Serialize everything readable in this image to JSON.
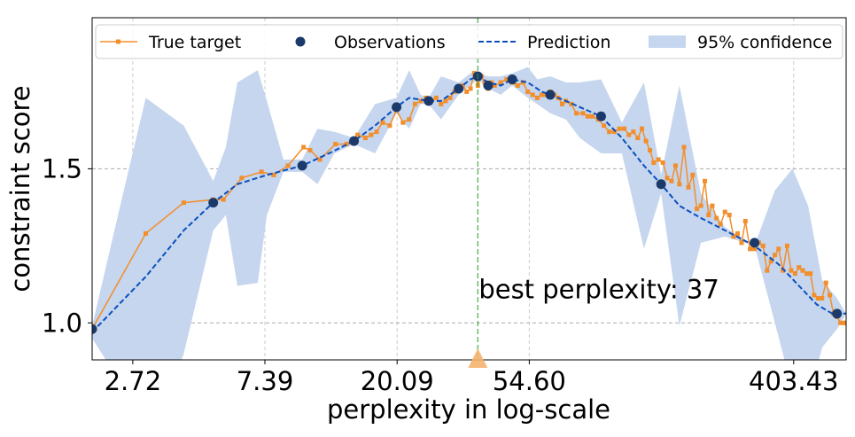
{
  "chart_data": {
    "type": "line",
    "xscale": "log",
    "xlabel": "perplexity in log-scale",
    "ylabel": "constraint score",
    "xlim": [
      2.0,
      600.0
    ],
    "ylim": [
      0.88,
      1.99
    ],
    "xticks": [
      2.72,
      7.39,
      20.09,
      54.6,
      403.43
    ],
    "xtick_labels": [
      "2.72",
      "7.39",
      "20.09",
      "54.60",
      "403.43"
    ],
    "yticks": [
      1.0,
      1.5
    ],
    "ytick_labels": [
      "1.0",
      "1.5"
    ],
    "grid": true,
    "legend_position": "top",
    "annotation": {
      "text": "best perplexity: 37",
      "x": 37.0
    },
    "colors": {
      "true_target": "#f28e2b",
      "observations": "#1b3a6b",
      "prediction": "#0b4fbf",
      "confidence": "#c5d6ee",
      "best_line": "#2ca02c",
      "best_marker": "#f5b26e"
    },
    "series": [
      {
        "name": "True target",
        "style": "line-marker",
        "x": [
          2.0,
          3.0,
          4.0,
          5.0,
          5.4,
          6.2,
          7.2,
          7.9,
          8.8,
          9.9,
          10.4,
          11.2,
          12.6,
          13.7,
          14.9,
          15.8,
          16.5,
          17.2,
          18.0,
          19.0,
          20.0,
          21.0,
          22.0,
          23.0,
          24.0,
          25.0,
          26.0,
          27.0,
          28.0,
          29.0,
          30.0,
          31.0,
          32.0,
          33.0,
          34.0,
          35.0,
          36.0,
          37.0,
          38.0,
          39.0,
          40.0,
          41.0,
          42.0,
          44.0,
          46.0,
          48.0,
          50.0,
          52.0,
          54.0,
          56.0,
          58.0,
          60.0,
          62.0,
          64.0,
          66.0,
          68.0,
          70.0,
          72.0,
          75.0,
          78.0,
          82.0,
          85.0,
          88.0,
          92.0,
          96.0,
          100.0,
          104.0,
          108.0,
          112.0,
          116.0,
          120.0,
          124.0,
          128.0,
          132.0,
          136.0,
          140.0,
          145.0,
          150.0,
          155.0,
          160.0,
          165.0,
          170.0,
          176.0,
          182.0,
          188.0,
          194.0,
          200.0,
          206.0,
          212.0,
          218.0,
          225.0,
          232.0,
          240.0,
          248.0,
          256.0,
          264.0,
          272.0,
          280.0,
          290.0,
          300.0,
          310.0,
          320.0,
          330.0,
          340.0,
          350.0,
          360.0,
          372.0,
          384.0,
          396.0,
          408.0,
          420.0,
          432.0,
          445.0,
          458.0,
          471.0,
          485.0,
          500.0,
          515.0,
          530.0,
          545.0,
          560.0,
          575.0,
          590.0,
          600.0
        ],
        "y": [
          0.98,
          1.29,
          1.39,
          1.4,
          1.4,
          1.47,
          1.49,
          1.48,
          1.51,
          1.57,
          1.56,
          1.53,
          1.58,
          1.58,
          1.61,
          1.6,
          1.61,
          1.62,
          1.65,
          1.64,
          1.69,
          1.65,
          1.66,
          1.71,
          1.72,
          1.73,
          1.72,
          1.73,
          1.71,
          1.72,
          1.73,
          1.75,
          1.76,
          1.77,
          1.75,
          1.76,
          1.81,
          1.77,
          1.8,
          1.78,
          1.76,
          1.78,
          1.77,
          1.78,
          1.79,
          1.78,
          1.77,
          1.78,
          1.75,
          1.74,
          1.73,
          1.74,
          1.74,
          1.75,
          1.74,
          1.73,
          1.71,
          1.72,
          1.71,
          1.68,
          1.68,
          1.67,
          1.67,
          1.66,
          1.64,
          1.62,
          1.62,
          1.63,
          1.63,
          1.61,
          1.62,
          1.6,
          1.63,
          1.59,
          1.56,
          1.52,
          1.53,
          1.52,
          1.47,
          1.46,
          1.51,
          1.45,
          1.57,
          1.44,
          1.48,
          1.37,
          1.38,
          1.46,
          1.35,
          1.38,
          1.34,
          1.32,
          1.36,
          1.35,
          1.28,
          1.29,
          1.26,
          1.33,
          1.24,
          1.24,
          1.26,
          1.25,
          1.17,
          1.2,
          1.22,
          1.24,
          1.17,
          1.25,
          1.17,
          1.16,
          1.18,
          1.17,
          1.16,
          1.16,
          1.09,
          1.08,
          1.08,
          1.13,
          1.09,
          1.03,
          1.02,
          1.0,
          1.0,
          1.0
        ]
      },
      {
        "name": "Observations",
        "style": "marker",
        "x": [
          2.0,
          5.0,
          9.8,
          14.5,
          20.0,
          25.5,
          32.0,
          37.0,
          40.0,
          48.0,
          64.0,
          94.0,
          148.0,
          300.0,
          560.0
        ],
        "y": [
          0.98,
          1.39,
          1.51,
          1.59,
          1.7,
          1.72,
          1.76,
          1.8,
          1.77,
          1.79,
          1.74,
          1.67,
          1.45,
          1.26,
          1.03
        ]
      },
      {
        "name": "Prediction",
        "style": "dashed",
        "x": [
          2.0,
          3.0,
          4.0,
          5.0,
          6.0,
          7.5,
          9.8,
          12.0,
          14.5,
          17.0,
          20.0,
          22.0,
          25.5,
          28.0,
          32.0,
          35.0,
          37.0,
          40.0,
          44.0,
          48.0,
          54.0,
          60.0,
          64.0,
          72.0,
          80.0,
          94.0,
          110.0,
          130.0,
          148.0,
          170.0,
          200.0,
          240.0,
          300.0,
          360.0,
          420.0,
          480.0,
          540.0,
          600.0
        ],
        "y": [
          0.97,
          1.15,
          1.3,
          1.39,
          1.45,
          1.48,
          1.51,
          1.55,
          1.59,
          1.64,
          1.7,
          1.73,
          1.72,
          1.72,
          1.76,
          1.79,
          1.8,
          1.78,
          1.77,
          1.79,
          1.78,
          1.75,
          1.74,
          1.72,
          1.7,
          1.67,
          1.6,
          1.51,
          1.45,
          1.38,
          1.34,
          1.3,
          1.25,
          1.19,
          1.12,
          1.06,
          1.03,
          1.03
        ]
      },
      {
        "name": "95% confidence",
        "style": "band",
        "x": [
          2.0,
          2.5,
          3.0,
          4.0,
          5.0,
          5.5,
          6.0,
          7.0,
          7.5,
          8.5,
          9.8,
          11.0,
          12.5,
          14.5,
          17.0,
          20.0,
          22.0,
          24.0,
          25.5,
          28.0,
          32.0,
          35.0,
          37.0,
          40.0,
          44.0,
          48.0,
          54.0,
          58.0,
          64.0,
          72.0,
          80.0,
          94.0,
          110.0,
          130.0,
          148.0,
          170.0,
          200.0,
          240.0,
          300.0,
          350.0,
          400.0,
          450.0,
          500.0,
          560.0,
          600.0
        ],
        "upper": [
          0.99,
          1.4,
          1.73,
          1.64,
          1.46,
          1.57,
          1.78,
          1.82,
          1.72,
          1.53,
          1.53,
          1.63,
          1.62,
          1.6,
          1.71,
          1.73,
          1.82,
          1.74,
          1.73,
          1.8,
          1.78,
          1.81,
          1.81,
          1.8,
          1.8,
          1.81,
          1.83,
          1.79,
          1.8,
          1.78,
          1.78,
          1.79,
          1.65,
          1.78,
          1.48,
          1.77,
          1.42,
          1.31,
          1.25,
          1.43,
          1.5,
          1.38,
          1.14,
          1.08,
          1.03
        ],
        "lower": [
          0.95,
          0.8,
          0.57,
          0.9,
          1.3,
          1.35,
          1.12,
          1.13,
          1.35,
          1.49,
          1.49,
          1.45,
          1.55,
          1.58,
          1.55,
          1.68,
          1.63,
          1.71,
          1.71,
          1.66,
          1.74,
          1.77,
          1.79,
          1.76,
          1.74,
          1.77,
          1.73,
          1.71,
          1.68,
          1.66,
          1.6,
          1.55,
          1.55,
          1.24,
          1.42,
          0.99,
          1.26,
          1.28,
          1.25,
          1.0,
          0.78,
          0.74,
          0.92,
          0.98,
          1.03
        ]
      }
    ]
  }
}
